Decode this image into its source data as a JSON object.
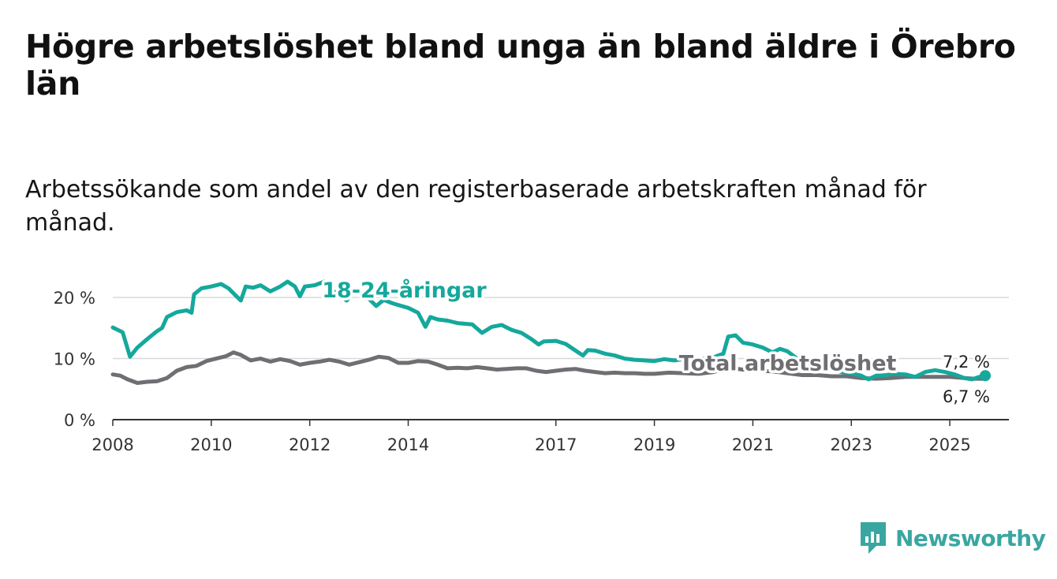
{
  "title": "Högre arbetslöshet bland unga än bland äldre i Örebro län",
  "subtitle": "Arbetssökande som andel av den registerbaserade arbetskraften månad för månad.",
  "brand": "Newsworthy",
  "colors": {
    "teal": "#15a89c",
    "gray": "#6f6f73",
    "grid": "#d9d9d9",
    "axis": "#333333",
    "brand": "#3aa6a1"
  },
  "chart_data": {
    "type": "line",
    "ylim": [
      0,
      22
    ],
    "xlim": [
      2008,
      2026.2
    ],
    "yticks": [
      {
        "value": 0,
        "label": "0 %"
      },
      {
        "value": 10,
        "label": "10 %"
      },
      {
        "value": 20,
        "label": "20 %"
      }
    ],
    "xticks": [
      {
        "value": 2008,
        "label": "2008"
      },
      {
        "value": 2010,
        "label": "2010"
      },
      {
        "value": 2012,
        "label": "2012"
      },
      {
        "value": 2014,
        "label": "2014"
      },
      {
        "value": 2017,
        "label": "2017"
      },
      {
        "value": 2019,
        "label": "2019"
      },
      {
        "value": 2021,
        "label": "2021"
      },
      {
        "value": 2023,
        "label": "2023"
      },
      {
        "value": 2025,
        "label": "2025"
      }
    ],
    "series": [
      {
        "name": "18-24-åringar",
        "label_at": [
          2012.25,
          20
        ],
        "end_label": "7,2 %",
        "points": [
          [
            2008.0,
            15.1
          ],
          [
            2008.2,
            14.3
          ],
          [
            2008.35,
            10.3
          ],
          [
            2008.5,
            11.8
          ],
          [
            2008.7,
            13.2
          ],
          [
            2008.9,
            14.5
          ],
          [
            2009.0,
            15.0
          ],
          [
            2009.1,
            16.8
          ],
          [
            2009.3,
            17.6
          ],
          [
            2009.5,
            17.9
          ],
          [
            2009.6,
            17.5
          ],
          [
            2009.65,
            20.5
          ],
          [
            2009.8,
            21.5
          ],
          [
            2010.0,
            21.8
          ],
          [
            2010.2,
            22.2
          ],
          [
            2010.35,
            21.5
          ],
          [
            2010.5,
            20.3
          ],
          [
            2010.6,
            19.5
          ],
          [
            2010.7,
            21.8
          ],
          [
            2010.85,
            21.6
          ],
          [
            2011.0,
            22.0
          ],
          [
            2011.2,
            21.0
          ],
          [
            2011.4,
            21.8
          ],
          [
            2011.55,
            22.6
          ],
          [
            2011.7,
            21.8
          ],
          [
            2011.8,
            20.2
          ],
          [
            2011.9,
            21.8
          ],
          [
            2012.1,
            22.0
          ],
          [
            2012.3,
            22.6
          ],
          [
            2012.4,
            21.2
          ],
          [
            2012.55,
            20.8
          ],
          [
            2012.75,
            19.5
          ],
          [
            2012.85,
            20.6
          ],
          [
            2013.0,
            21.0
          ],
          [
            2013.2,
            19.8
          ],
          [
            2013.35,
            18.6
          ],
          [
            2013.5,
            19.6
          ],
          [
            2013.7,
            19.0
          ],
          [
            2014.0,
            18.3
          ],
          [
            2014.2,
            17.5
          ],
          [
            2014.35,
            15.2
          ],
          [
            2014.45,
            16.8
          ],
          [
            2014.6,
            16.4
          ],
          [
            2014.8,
            16.2
          ],
          [
            2015.0,
            15.8
          ],
          [
            2015.3,
            15.6
          ],
          [
            2015.5,
            14.2
          ],
          [
            2015.7,
            15.2
          ],
          [
            2015.9,
            15.5
          ],
          [
            2016.1,
            14.7
          ],
          [
            2016.3,
            14.2
          ],
          [
            2016.5,
            13.2
          ],
          [
            2016.65,
            12.3
          ],
          [
            2016.75,
            12.8
          ],
          [
            2017.0,
            12.9
          ],
          [
            2017.2,
            12.4
          ],
          [
            2017.4,
            11.3
          ],
          [
            2017.55,
            10.5
          ],
          [
            2017.65,
            11.4
          ],
          [
            2017.8,
            11.3
          ],
          [
            2018.0,
            10.8
          ],
          [
            2018.2,
            10.5
          ],
          [
            2018.4,
            10.0
          ],
          [
            2018.6,
            9.8
          ],
          [
            2018.8,
            9.7
          ],
          [
            2019.0,
            9.6
          ],
          [
            2019.2,
            9.9
          ],
          [
            2019.4,
            9.7
          ],
          [
            2019.6,
            9.9
          ],
          [
            2019.8,
            9.8
          ],
          [
            2020.0,
            10.0
          ],
          [
            2020.2,
            10.2
          ],
          [
            2020.4,
            10.8
          ],
          [
            2020.5,
            13.6
          ],
          [
            2020.65,
            13.8
          ],
          [
            2020.8,
            12.6
          ],
          [
            2021.0,
            12.3
          ],
          [
            2021.2,
            11.8
          ],
          [
            2021.4,
            11.0
          ],
          [
            2021.55,
            11.6
          ],
          [
            2021.7,
            11.2
          ],
          [
            2021.9,
            10.0
          ],
          [
            2022.0,
            9.2
          ],
          [
            2022.2,
            8.7
          ],
          [
            2022.4,
            8.4
          ],
          [
            2022.6,
            8.2
          ],
          [
            2022.8,
            7.8
          ],
          [
            2023.0,
            7.6
          ],
          [
            2023.2,
            7.2
          ],
          [
            2023.35,
            6.6
          ],
          [
            2023.5,
            7.2
          ],
          [
            2023.7,
            7.3
          ],
          [
            2023.9,
            7.5
          ],
          [
            2024.1,
            7.4
          ],
          [
            2024.3,
            7.0
          ],
          [
            2024.5,
            7.8
          ],
          [
            2024.7,
            8.1
          ],
          [
            2024.9,
            7.8
          ],
          [
            2025.1,
            7.4
          ],
          [
            2025.3,
            6.8
          ],
          [
            2025.45,
            6.6
          ],
          [
            2025.6,
            7.0
          ],
          [
            2025.72,
            7.2
          ]
        ]
      },
      {
        "name": "Total arbetslöshet",
        "label_at": [
          2019.5,
          8.1
        ],
        "end_label": "6,7 %",
        "points": [
          [
            2008.0,
            7.4
          ],
          [
            2008.15,
            7.2
          ],
          [
            2008.3,
            6.6
          ],
          [
            2008.5,
            6.0
          ],
          [
            2008.7,
            6.2
          ],
          [
            2008.9,
            6.3
          ],
          [
            2009.1,
            6.8
          ],
          [
            2009.3,
            8.0
          ],
          [
            2009.5,
            8.6
          ],
          [
            2009.7,
            8.8
          ],
          [
            2009.9,
            9.6
          ],
          [
            2010.1,
            10.0
          ],
          [
            2010.3,
            10.4
          ],
          [
            2010.45,
            11.0
          ],
          [
            2010.6,
            10.6
          ],
          [
            2010.8,
            9.7
          ],
          [
            2011.0,
            10.0
          ],
          [
            2011.2,
            9.5
          ],
          [
            2011.4,
            9.9
          ],
          [
            2011.6,
            9.6
          ],
          [
            2011.8,
            9.0
          ],
          [
            2012.0,
            9.3
          ],
          [
            2012.2,
            9.5
          ],
          [
            2012.4,
            9.8
          ],
          [
            2012.6,
            9.5
          ],
          [
            2012.8,
            9.0
          ],
          [
            2013.0,
            9.4
          ],
          [
            2013.2,
            9.8
          ],
          [
            2013.4,
            10.3
          ],
          [
            2013.6,
            10.1
          ],
          [
            2013.8,
            9.3
          ],
          [
            2014.0,
            9.3
          ],
          [
            2014.2,
            9.6
          ],
          [
            2014.4,
            9.5
          ],
          [
            2014.6,
            9.0
          ],
          [
            2014.8,
            8.4
          ],
          [
            2015.0,
            8.5
          ],
          [
            2015.2,
            8.4
          ],
          [
            2015.4,
            8.6
          ],
          [
            2015.6,
            8.4
          ],
          [
            2015.8,
            8.2
          ],
          [
            2016.0,
            8.3
          ],
          [
            2016.2,
            8.4
          ],
          [
            2016.4,
            8.4
          ],
          [
            2016.6,
            8.0
          ],
          [
            2016.8,
            7.8
          ],
          [
            2017.0,
            8.0
          ],
          [
            2017.2,
            8.2
          ],
          [
            2017.4,
            8.3
          ],
          [
            2017.6,
            8.0
          ],
          [
            2017.8,
            7.8
          ],
          [
            2018.0,
            7.6
          ],
          [
            2018.2,
            7.7
          ],
          [
            2018.4,
            7.6
          ],
          [
            2018.6,
            7.6
          ],
          [
            2018.8,
            7.5
          ],
          [
            2019.0,
            7.5
          ],
          [
            2019.3,
            7.7
          ],
          [
            2019.6,
            7.6
          ],
          [
            2019.9,
            7.5
          ],
          [
            2020.2,
            7.8
          ],
          [
            2020.5,
            8.5
          ],
          [
            2020.8,
            8.2
          ],
          [
            2021.1,
            8.0
          ],
          [
            2021.4,
            7.9
          ],
          [
            2021.7,
            7.6
          ],
          [
            2022.0,
            7.3
          ],
          [
            2022.3,
            7.3
          ],
          [
            2022.6,
            7.1
          ],
          [
            2022.9,
            7.1
          ],
          [
            2023.2,
            6.8
          ],
          [
            2023.5,
            6.7
          ],
          [
            2023.8,
            6.8
          ],
          [
            2024.1,
            7.0
          ],
          [
            2024.4,
            7.0
          ],
          [
            2024.7,
            7.0
          ],
          [
            2025.0,
            7.0
          ],
          [
            2025.3,
            6.8
          ],
          [
            2025.5,
            6.7
          ],
          [
            2025.72,
            6.7
          ]
        ]
      }
    ]
  }
}
